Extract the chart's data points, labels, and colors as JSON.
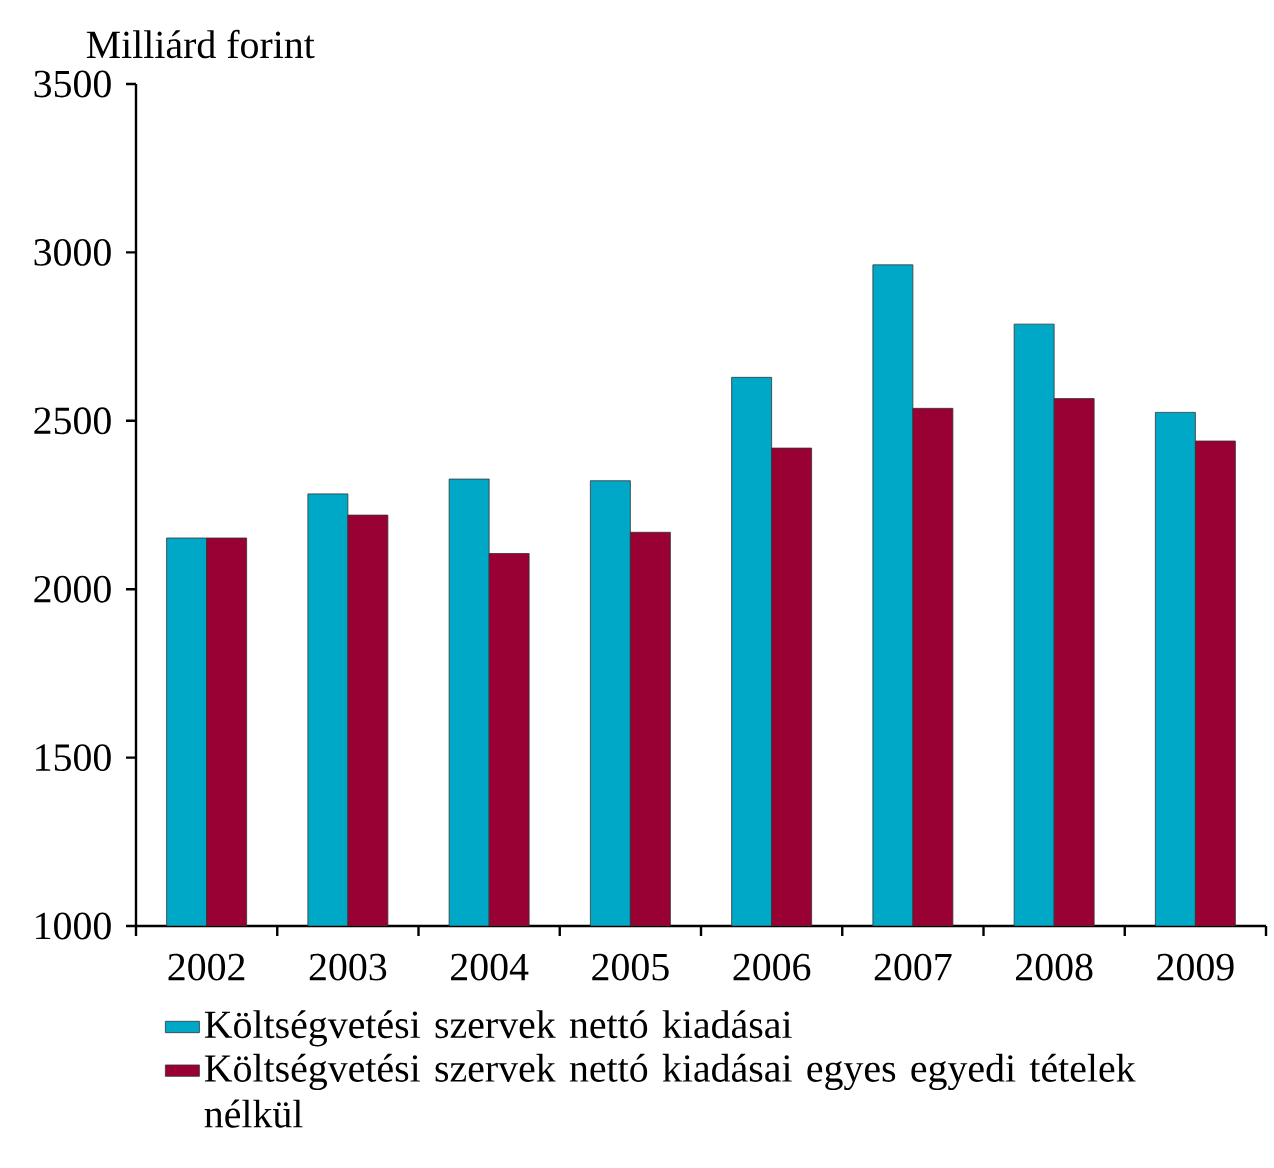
{
  "chart_data": {
    "type": "bar",
    "ylabel": "Milliárd forint",
    "categories": [
      "2002",
      "2003",
      "2004",
      "2005",
      "2006",
      "2007",
      "2008",
      "2009"
    ],
    "series": [
      {
        "name": "Költségvetési szervek nettó kiadásai",
        "color": "#00a8c8",
        "values": [
          2152,
          2283,
          2327,
          2322,
          2629,
          2963,
          2787,
          2525
        ]
      },
      {
        "name": "Költségvetési szervek nettó kiadásai egyes egyedi tételek nélkül",
        "color": "#990033",
        "values": [
          2152,
          2220,
          2106,
          2169,
          2419,
          2537,
          2566,
          2440
        ]
      }
    ],
    "ylim": [
      1000,
      3500
    ],
    "yticks": [
      1000,
      1500,
      2000,
      2500,
      3000,
      3500
    ],
    "grid": false,
    "legend": "bottom"
  }
}
